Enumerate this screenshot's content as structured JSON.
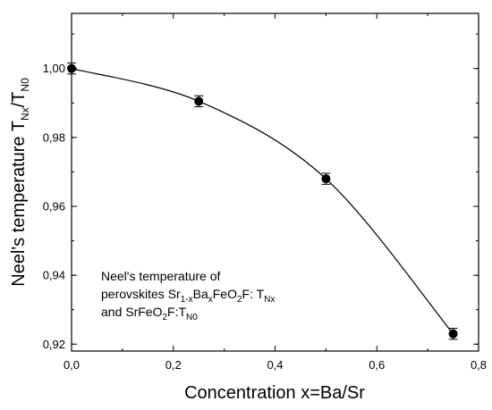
{
  "chart_data": {
    "type": "scatter",
    "xlabel": "Concentration x=Ba/Sr",
    "ylabel": {
      "main": "Neel's temperature T",
      "sub1": "Nx",
      "slash": "/T",
      "sub2": "N0"
    },
    "xlim": [
      0.0,
      0.8
    ],
    "ylim": [
      0.918,
      1.016
    ],
    "x_ticks": [
      0.0,
      0.2,
      0.4,
      0.6,
      0.8
    ],
    "x_tick_labels": [
      "0,0",
      "0,2",
      "0,4",
      "0,6",
      "0,8"
    ],
    "y_ticks": [
      0.92,
      0.94,
      0.96,
      0.98,
      1.0
    ],
    "y_tick_labels": [
      "0,92",
      "0,94",
      "0,96",
      "0,98",
      "1,00"
    ],
    "grid": false,
    "series": [
      {
        "x": [
          0.0,
          0.25,
          0.5,
          0.75
        ],
        "y": [
          1.0,
          0.9905,
          0.968,
          0.923
        ],
        "yerr": [
          0.0016,
          0.0016,
          0.0016,
          0.0016
        ],
        "marker": "filled-circle",
        "fit_line": true
      }
    ],
    "annotation": {
      "line1": "Neel's temperature of",
      "line2_prefix": "perovskites Sr",
      "line2_sub1": "1-x",
      "line2_mid1": "Ba",
      "line2_sub2": "x",
      "line2_mid2": "FeO",
      "line2_sub3": "2",
      "line2_mid3": "F: T",
      "line2_sub4": "Nx",
      "line3_prefix": "and SrFeO",
      "line3_sub1": "2",
      "line3_mid": "F:T",
      "line3_sub2": "N0"
    },
    "colors": {
      "axis": "#000000",
      "marker": "#000000",
      "line": "#000000"
    }
  }
}
